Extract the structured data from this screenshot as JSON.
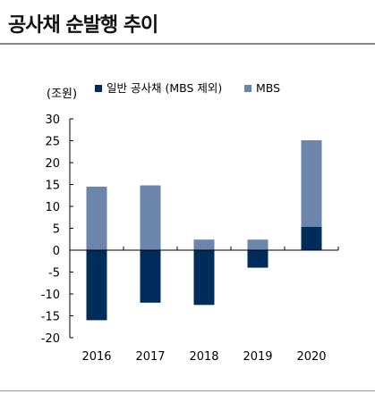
{
  "title": "공사채 순발행 추이",
  "colors": {
    "general": "#002c5b",
    "mbs": "#6b86aa",
    "axis": "#000000"
  },
  "chart_data": {
    "type": "bar",
    "stacked": true,
    "unit_label": "(조원)",
    "categories": [
      "2016",
      "2017",
      "2018",
      "2019",
      "2020"
    ],
    "series": [
      {
        "name": "일반 공사채 (MBS 제외)",
        "values": [
          -16,
          -12,
          -12.5,
          -4,
          5.3
        ]
      },
      {
        "name": "MBS",
        "values": [
          14.5,
          14.8,
          2.4,
          2.4,
          19.8
        ]
      }
    ],
    "ylim": [
      -20,
      30
    ],
    "yticks": [
      "30",
      "25",
      "20",
      "15",
      "10",
      "5",
      "0",
      "-5",
      "-10",
      "-15",
      "-20"
    ],
    "legend_position": "top",
    "grid": false
  }
}
